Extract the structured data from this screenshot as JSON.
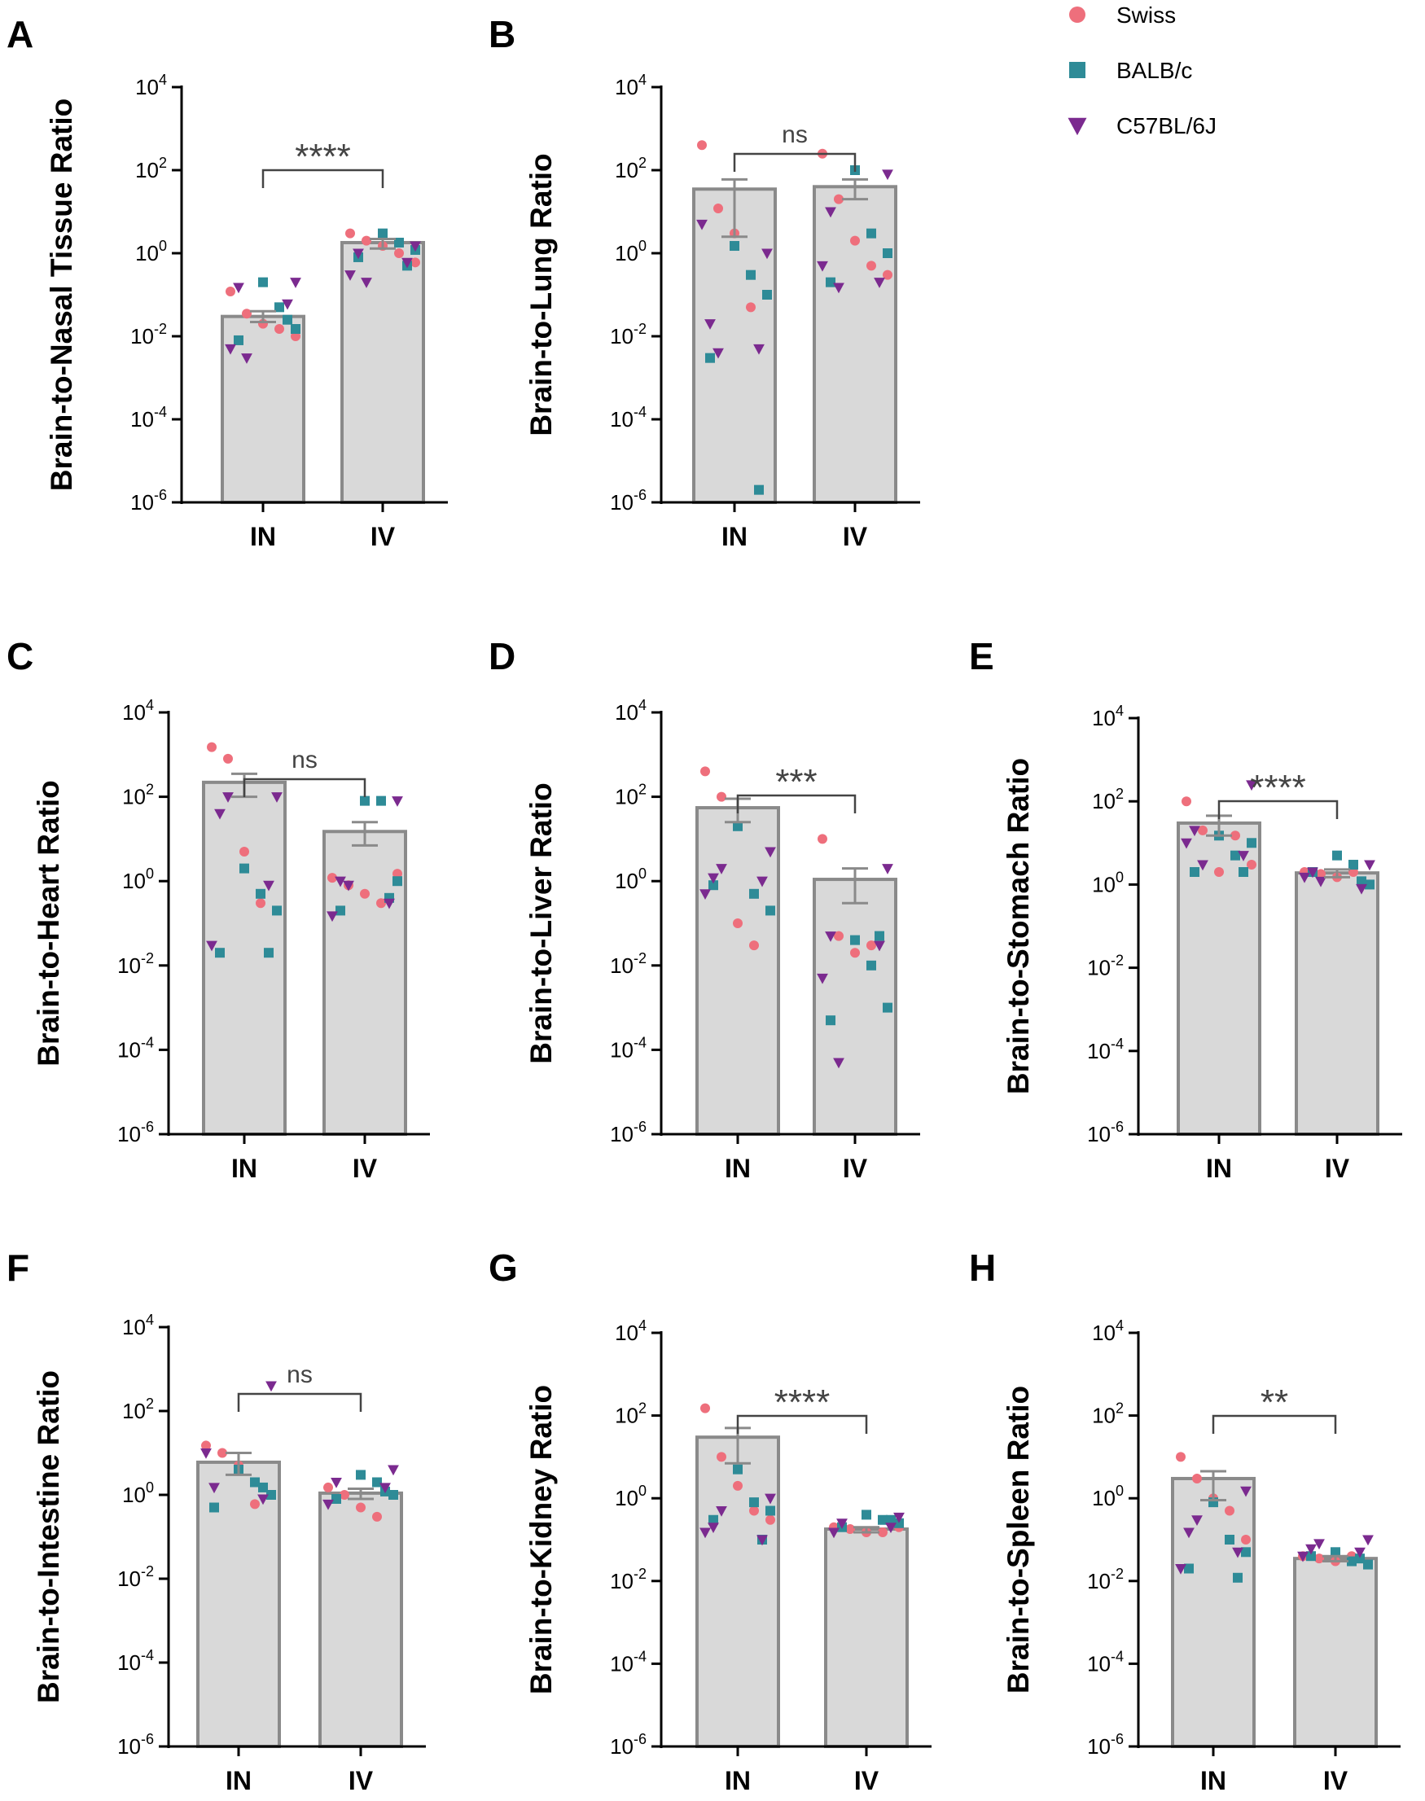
{
  "colors": {
    "bar_fill": "#d9d9d9",
    "bar_stroke": "#8a8a8a",
    "axis": "#000000",
    "bracket": "#444444"
  },
  "legend": [
    {
      "name": "Swiss",
      "shape": "circle",
      "color": "#ee6f7c"
    },
    {
      "name": "BALB/c",
      "shape": "square",
      "color": "#2e8b97"
    },
    {
      "name": "C57BL/6J",
      "shape": "triangle-down",
      "color": "#7b2a8f"
    }
  ],
  "chart_data": [
    {
      "panel": "A",
      "type": "bar",
      "yscale": "log",
      "ylim": [
        1e-06,
        10000.0
      ],
      "ylabel": "Brain-to-Nasal Tissue Ratio",
      "categories": [
        "IN",
        "IV"
      ],
      "bar_values": [
        0.03,
        1.8
      ],
      "error": [
        [
          0.022,
          0.04
        ],
        [
          1.3,
          2.2
        ]
      ],
      "significance": "****",
      "points": {
        "IN": {
          "Swiss": [
            0.12,
            0.035,
            0.02,
            0.015,
            0.01
          ],
          "BALB/c": [
            0.2,
            0.05,
            0.015,
            0.008,
            0.025
          ],
          "C57BL/6J": [
            0.2,
            0.15,
            0.06,
            0.005,
            0.003
          ]
        },
        "IV": {
          "Swiss": [
            3,
            2,
            1.5,
            1,
            0.6
          ],
          "BALB/c": [
            3,
            1.8,
            1.2,
            0.8,
            0.5
          ],
          "C57BL/6J": [
            1.5,
            1.0,
            0.6,
            0.3,
            0.2
          ]
        }
      }
    },
    {
      "panel": "B",
      "type": "bar",
      "yscale": "log",
      "ylim": [
        1e-06,
        10000.0
      ],
      "ylabel": "Brain-to-Lung Ratio",
      "categories": [
        "IN",
        "IV"
      ],
      "bar_values": [
        35,
        40
      ],
      "error": [
        [
          2.5,
          60
        ],
        [
          20,
          60
        ]
      ],
      "significance": "ns",
      "points": {
        "IN": {
          "Swiss": [
            400,
            12,
            3,
            0.05
          ],
          "BALB/c": [
            1.5,
            0.3,
            0.1,
            0.003,
            2e-06
          ],
          "C57BL/6J": [
            1,
            0.02,
            0.005,
            5,
            0.004
          ]
        },
        "IV": {
          "Swiss": [
            250,
            20,
            2,
            0.5,
            0.3
          ],
          "BALB/c": [
            100,
            3,
            1,
            0.2
          ],
          "C57BL/6J": [
            80,
            10,
            0.2,
            0.5,
            0.15
          ]
        }
      }
    },
    {
      "panel": "C",
      "type": "bar",
      "yscale": "log",
      "ylim": [
        1e-06,
        10000.0
      ],
      "ylabel": "Brain-to-Heart Ratio",
      "categories": [
        "IN",
        "IV"
      ],
      "bar_values": [
        220,
        15
      ],
      "error": [
        [
          100,
          350
        ],
        [
          7,
          25
        ]
      ],
      "significance": "ns",
      "points": {
        "IN": {
          "Swiss": [
            1500,
            800,
            5,
            0.3
          ],
          "BALB/c": [
            2,
            0.5,
            0.2,
            0.02,
            0.02
          ],
          "C57BL/6J": [
            100,
            40,
            0.8,
            0.03,
            100
          ]
        },
        "IV": {
          "Swiss": [
            1.2,
            0.8,
            0.5,
            0.3,
            1.5
          ],
          "BALB/c": [
            80,
            80,
            1,
            0.2,
            0.4
          ],
          "C57BL/6J": [
            80,
            1,
            0.3,
            0.15,
            0.8
          ]
        }
      }
    },
    {
      "panel": "D",
      "type": "bar",
      "yscale": "log",
      "ylim": [
        1e-06,
        10000.0
      ],
      "ylabel": "Brain-to-Liver Ratio",
      "categories": [
        "IN",
        "IV"
      ],
      "bar_values": [
        55,
        1.1
      ],
      "error": [
        [
          25,
          90
        ],
        [
          0.3,
          2
        ]
      ],
      "significance": "***",
      "points": {
        "IN": {
          "Swiss": [
            400,
            100,
            0.1,
            0.03
          ],
          "BALB/c": [
            20,
            0.5,
            0.2,
            0.8
          ],
          "C57BL/6J": [
            5,
            1.2,
            1,
            0.5,
            2
          ]
        },
        "IV": {
          "Swiss": [
            10,
            0.05,
            0.02,
            0.03
          ],
          "BALB/c": [
            0.04,
            0.01,
            0.001,
            0.0005,
            0.05
          ],
          "C57BL/6J": [
            2,
            0.05,
            0.03,
            0.005,
            5e-05
          ]
        }
      }
    },
    {
      "panel": "E",
      "type": "bar",
      "yscale": "log",
      "ylim": [
        1e-06,
        10000.0
      ],
      "ylabel": "Brain-to-Stomach Ratio",
      "categories": [
        "IN",
        "IV"
      ],
      "bar_values": [
        30,
        1.9
      ],
      "error": [
        [
          15,
          45
        ],
        [
          1.5,
          2.3
        ]
      ],
      "significance": "****",
      "points": {
        "IN": {
          "Swiss": [
            100,
            20,
            2,
            15,
            3
          ],
          "BALB/c": [
            15,
            5,
            10,
            2,
            2
          ],
          "C57BL/6J": [
            250,
            20,
            5,
            10,
            3
          ]
        },
        "IV": {
          "Swiss": [
            2,
            1.8,
            1.5,
            2,
            1
          ],
          "BALB/c": [
            5,
            3,
            1,
            2,
            1.2
          ],
          "C57BL/6J": [
            3,
            2,
            0.8,
            1.5,
            1.2
          ]
        }
      }
    },
    {
      "panel": "F",
      "type": "bar",
      "yscale": "log",
      "ylim": [
        1e-06,
        10000.0
      ],
      "ylabel": "Brain-to-Intestine Ratio",
      "categories": [
        "IN",
        "IV"
      ],
      "bar_values": [
        6,
        1.1
      ],
      "error": [
        [
          3,
          10
        ],
        [
          0.8,
          1.4
        ]
      ],
      "significance": "ns",
      "points": {
        "IN": {
          "Swiss": [
            15,
            10,
            5,
            0.6
          ],
          "BALB/c": [
            4,
            2,
            1,
            0.5,
            1.5
          ],
          "C57BL/6J": [
            400,
            1.5,
            0.8,
            10
          ]
        },
        "IV": {
          "Swiss": [
            1.5,
            1,
            0.5,
            0.3
          ],
          "BALB/c": [
            3,
            2,
            1,
            0.8,
            1.2
          ],
          "C57BL/6J": [
            4,
            2,
            1.5,
            0.6
          ]
        }
      }
    },
    {
      "panel": "G",
      "type": "bar",
      "yscale": "log",
      "ylim": [
        1e-06,
        10000.0
      ],
      "ylabel": "Brain-to-Kidney Ratio",
      "categories": [
        "IN",
        "IV"
      ],
      "bar_values": [
        30,
        0.18
      ],
      "error": [
        [
          7,
          50
        ],
        [
          0.15,
          0.2
        ]
      ],
      "significance": "****",
      "points": {
        "IN": {
          "Swiss": [
            150,
            10,
            2,
            0.5,
            0.3
          ],
          "BALB/c": [
            5,
            0.8,
            0.5,
            0.3,
            0.1
          ],
          "C57BL/6J": [
            1,
            0.2,
            0.1,
            0.15,
            0.5
          ]
        },
        "IV": {
          "Swiss": [
            0.2,
            0.18,
            0.15,
            0.15,
            0.2
          ],
          "BALB/c": [
            0.4,
            0.3,
            0.25,
            0.2,
            0.3
          ],
          "C57BL/6J": [
            0.35,
            0.25,
            0.2,
            0.15
          ]
        }
      }
    },
    {
      "panel": "H",
      "type": "bar",
      "yscale": "log",
      "ylim": [
        1e-06,
        10000.0
      ],
      "ylabel": "Brain-to-Spleen Ratio",
      "categories": [
        "IN",
        "IV"
      ],
      "bar_values": [
        3,
        0.035
      ],
      "error": [
        [
          0.9,
          4.5
        ],
        [
          0.03,
          0.04
        ]
      ],
      "significance": "**",
      "points": {
        "IN": {
          "Swiss": [
            10,
            3,
            1,
            0.5,
            0.1
          ],
          "BALB/c": [
            0.8,
            0.1,
            0.05,
            0.02,
            0.012
          ],
          "C57BL/6J": [
            1.5,
            0.15,
            0.05,
            0.02,
            0.3
          ]
        },
        "IV": {
          "Swiss": [
            0.04,
            0.035,
            0.03,
            0.04
          ],
          "BALB/c": [
            0.05,
            0.03,
            0.025,
            0.04,
            0.035
          ],
          "C57BL/6J": [
            0.1,
            0.06,
            0.05,
            0.04,
            0.08
          ]
        }
      }
    }
  ]
}
